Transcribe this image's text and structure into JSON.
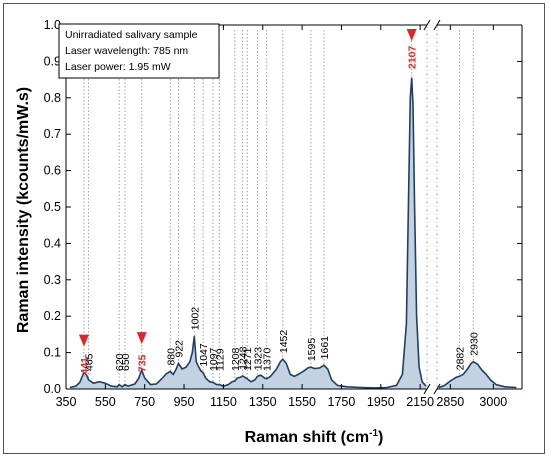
{
  "chart_data": {
    "type": "area",
    "xlabel": "Raman shift (cm",
    "xlabel_sup": "-1",
    "xlabel_close": ")",
    "ylabel": "Raman intensity (kcounts/mW.s)",
    "xlim": [
      350,
      3100
    ],
    "axis_break": {
      "between": [
        2190,
        2800
      ]
    },
    "ylim": [
      0,
      1.0
    ],
    "x_ticks": [
      "350",
      "550",
      "750",
      "950",
      "1150",
      "1350",
      "1550",
      "1750",
      "1950",
      "2150",
      "2850",
      "3000"
    ],
    "y_ticks": [
      "0.0",
      "0.1",
      "0.2",
      "0.3",
      "0.4",
      "0.5",
      "0.6",
      "0.7",
      "0.8",
      "0.9",
      "1.0"
    ],
    "annotation_lines": [
      "Unirradiated salivary sample",
      "Laser wavelength: 785 nm",
      "Laser power: 1.95 mW"
    ],
    "peak_labels": [
      {
        "x": 441,
        "label": "441",
        "highlight": true
      },
      {
        "x": 465,
        "label": "465",
        "highlight": false
      },
      {
        "x": 620,
        "label": "620",
        "highlight": false
      },
      {
        "x": 650,
        "label": "650",
        "highlight": false
      },
      {
        "x": 735,
        "label": "735",
        "highlight": true
      },
      {
        "x": 880,
        "label": "880",
        "highlight": false
      },
      {
        "x": 922,
        "label": "922",
        "highlight": false
      },
      {
        "x": 1002,
        "label": "1002",
        "highlight": false
      },
      {
        "x": 1047,
        "label": "1047",
        "highlight": false
      },
      {
        "x": 1097,
        "label": "1097",
        "highlight": false
      },
      {
        "x": 1129,
        "label": "1129",
        "highlight": false
      },
      {
        "x": 1208,
        "label": "1208",
        "highlight": false
      },
      {
        "x": 1248,
        "label": "1248",
        "highlight": false
      },
      {
        "x": 1271,
        "label": "1271",
        "highlight": false
      },
      {
        "x": 1323,
        "label": "1323",
        "highlight": false
      },
      {
        "x": 1370,
        "label": "1370",
        "highlight": false
      },
      {
        "x": 1452,
        "label": "1452",
        "highlight": false
      },
      {
        "x": 1595,
        "label": "1595",
        "highlight": false
      },
      {
        "x": 1661,
        "label": "1661",
        "highlight": false
      },
      {
        "x": 2107,
        "label": "2107",
        "highlight": true
      },
      {
        "x": 2882,
        "label": "2882",
        "highlight": false
      },
      {
        "x": 2930,
        "label": "2930",
        "highlight": false
      }
    ],
    "series": [
      {
        "points": [
          [
            370,
            0.004
          ],
          [
            400,
            0.008
          ],
          [
            420,
            0.018
          ],
          [
            441,
            0.045
          ],
          [
            455,
            0.038
          ],
          [
            465,
            0.025
          ],
          [
            490,
            0.016
          ],
          [
            520,
            0.02
          ],
          [
            550,
            0.016
          ],
          [
            580,
            0.008
          ],
          [
            610,
            0.006
          ],
          [
            620,
            0.012
          ],
          [
            635,
            0.006
          ],
          [
            650,
            0.012
          ],
          [
            665,
            0.008
          ],
          [
            700,
            0.014
          ],
          [
            720,
            0.03
          ],
          [
            735,
            0.052
          ],
          [
            750,
            0.03
          ],
          [
            780,
            0.012
          ],
          [
            810,
            0.014
          ],
          [
            840,
            0.03
          ],
          [
            860,
            0.042
          ],
          [
            880,
            0.048
          ],
          [
            895,
            0.04
          ],
          [
            910,
            0.055
          ],
          [
            922,
            0.07
          ],
          [
            940,
            0.055
          ],
          [
            960,
            0.06
          ],
          [
            980,
            0.075
          ],
          [
            992,
            0.1
          ],
          [
            1002,
            0.145
          ],
          [
            1012,
            0.075
          ],
          [
            1025,
            0.06
          ],
          [
            1035,
            0.05
          ],
          [
            1047,
            0.045
          ],
          [
            1060,
            0.03
          ],
          [
            1080,
            0.02
          ],
          [
            1097,
            0.018
          ],
          [
            1115,
            0.012
          ],
          [
            1129,
            0.012
          ],
          [
            1150,
            0.008
          ],
          [
            1175,
            0.012
          ],
          [
            1195,
            0.02
          ],
          [
            1208,
            0.022
          ],
          [
            1220,
            0.03
          ],
          [
            1235,
            0.032
          ],
          [
            1248,
            0.036
          ],
          [
            1260,
            0.032
          ],
          [
            1271,
            0.028
          ],
          [
            1290,
            0.02
          ],
          [
            1310,
            0.025
          ],
          [
            1323,
            0.035
          ],
          [
            1340,
            0.038
          ],
          [
            1360,
            0.03
          ],
          [
            1370,
            0.028
          ],
          [
            1390,
            0.035
          ],
          [
            1420,
            0.055
          ],
          [
            1440,
            0.075
          ],
          [
            1452,
            0.082
          ],
          [
            1470,
            0.07
          ],
          [
            1490,
            0.04
          ],
          [
            1510,
            0.035
          ],
          [
            1530,
            0.04
          ],
          [
            1560,
            0.05
          ],
          [
            1580,
            0.058
          ],
          [
            1595,
            0.06
          ],
          [
            1615,
            0.056
          ],
          [
            1640,
            0.058
          ],
          [
            1661,
            0.065
          ],
          [
            1680,
            0.055
          ],
          [
            1700,
            0.025
          ],
          [
            1730,
            0.01
          ],
          [
            1780,
            0.006
          ],
          [
            1850,
            0.004
          ],
          [
            1920,
            0.003
          ],
          [
            1980,
            0.004
          ],
          [
            2030,
            0.01
          ],
          [
            2060,
            0.04
          ],
          [
            2080,
            0.18
          ],
          [
            2092,
            0.55
          ],
          [
            2100,
            0.8
          ],
          [
            2107,
            0.855
          ],
          [
            2114,
            0.78
          ],
          [
            2122,
            0.5
          ],
          [
            2132,
            0.2
          ],
          [
            2145,
            0.06
          ],
          [
            2160,
            0.02
          ],
          [
            2180,
            0.008
          ],
          [
            2810,
            0.004
          ],
          [
            2830,
            0.01
          ],
          [
            2850,
            0.022
          ],
          [
            2870,
            0.032
          ],
          [
            2882,
            0.035
          ],
          [
            2895,
            0.04
          ],
          [
            2910,
            0.055
          ],
          [
            2922,
            0.07
          ],
          [
            2930,
            0.075
          ],
          [
            2945,
            0.068
          ],
          [
            2960,
            0.052
          ],
          [
            2975,
            0.04
          ],
          [
            2990,
            0.025
          ],
          [
            3010,
            0.012
          ],
          [
            3040,
            0.006
          ],
          [
            3080,
            0.004
          ]
        ]
      }
    ]
  }
}
